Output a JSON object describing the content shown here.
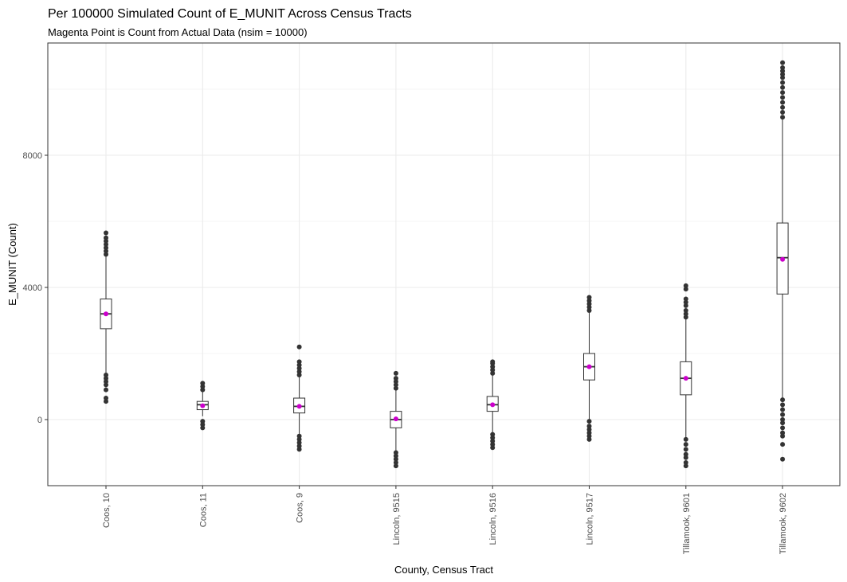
{
  "chart_data": {
    "type": "boxplot",
    "title": "Per 100000 Simulated Count of E_MUNIT Across Census Tracts",
    "subtitle": "Magenta Point is Count from Actual Data (nsim = 10000)",
    "xlabel": "County, Census Tract",
    "ylabel": "E_MUNIT (Count)",
    "ylim": [
      -2000,
      10900
    ],
    "y_ticks": [
      0,
      4000,
      8000
    ],
    "grid": true,
    "colors": {
      "box": "#333333",
      "actual_point": "#cc00cc",
      "grid": "#ebebeb",
      "panel_border": "#333333"
    },
    "categories": [
      "Coos, 10",
      "Coos, 11",
      "Coos, 9",
      "Lincoln, 9515",
      "Lincoln, 9516",
      "Lincoln, 9517",
      "Tillamook, 9601",
      "Tillamook, 9602"
    ],
    "boxes": [
      {
        "q1": 2750,
        "median": 3200,
        "q3": 3650,
        "whisker_low": 1400,
        "whisker_high": 4950,
        "actual": 3200,
        "outliers_high": [
          5000,
          5100,
          5200,
          5300,
          5400,
          5500,
          5650
        ],
        "outliers_low": [
          1350,
          1250,
          1150,
          1050,
          900,
          650,
          550
        ]
      },
      {
        "q1": 300,
        "median": 450,
        "q3": 550,
        "whisker_low": 100,
        "whisker_high": 850,
        "actual": 420,
        "outliers_high": [
          900,
          1000,
          1100
        ],
        "outliers_low": [
          -50,
          -150,
          -250
        ]
      },
      {
        "q1": 200,
        "median": 400,
        "q3": 650,
        "whisker_low": -450,
        "whisker_high": 1300,
        "actual": 400,
        "outliers_high": [
          1350,
          1450,
          1550,
          1650,
          1750,
          2200
        ],
        "outliers_low": [
          -500,
          -600,
          -700,
          -800,
          -900
        ]
      },
      {
        "q1": -250,
        "median": 0,
        "q3": 250,
        "whisker_low": -950,
        "whisker_high": 900,
        "actual": 20,
        "outliers_high": [
          950,
          1050,
          1150,
          1250,
          1400
        ],
        "outliers_low": [
          -1000,
          -1100,
          -1200,
          -1300,
          -1400
        ]
      },
      {
        "q1": 250,
        "median": 450,
        "q3": 700,
        "whisker_low": -400,
        "whisker_high": 1350,
        "actual": 450,
        "outliers_high": [
          1400,
          1500,
          1600,
          1700,
          1750
        ],
        "outliers_low": [
          -450,
          -550,
          -650,
          -750,
          -850
        ]
      },
      {
        "q1": 1200,
        "median": 1600,
        "q3": 2000,
        "whisker_low": 0,
        "whisker_high": 3250,
        "actual": 1600,
        "outliers_high": [
          3300,
          3400,
          3500,
          3600,
          3700
        ],
        "outliers_low": [
          -50,
          -200,
          -300,
          -400,
          -500,
          -600
        ]
      },
      {
        "q1": 750,
        "median": 1250,
        "q3": 1750,
        "whisker_low": -550,
        "whisker_high": 3050,
        "actual": 1250,
        "outliers_high": [
          3100,
          3200,
          3300,
          3450,
          3550,
          3650,
          3950,
          4050
        ],
        "outliers_low": [
          -600,
          -750,
          -900,
          -1050,
          -1150,
          -1300,
          -1400
        ]
      },
      {
        "q1": 3800,
        "median": 4900,
        "q3": 5950,
        "whisker_low": 650,
        "whisker_high": 9100,
        "actual": 4850,
        "outliers_high": [
          9150,
          9300,
          9450,
          9600,
          9750,
          9900,
          10050,
          10200,
          10350,
          10450,
          10550,
          10650,
          10800
        ],
        "outliers_low": [
          600,
          450,
          300,
          150,
          0,
          -100,
          -250,
          -400,
          -500,
          -750,
          -1200
        ]
      }
    ]
  }
}
